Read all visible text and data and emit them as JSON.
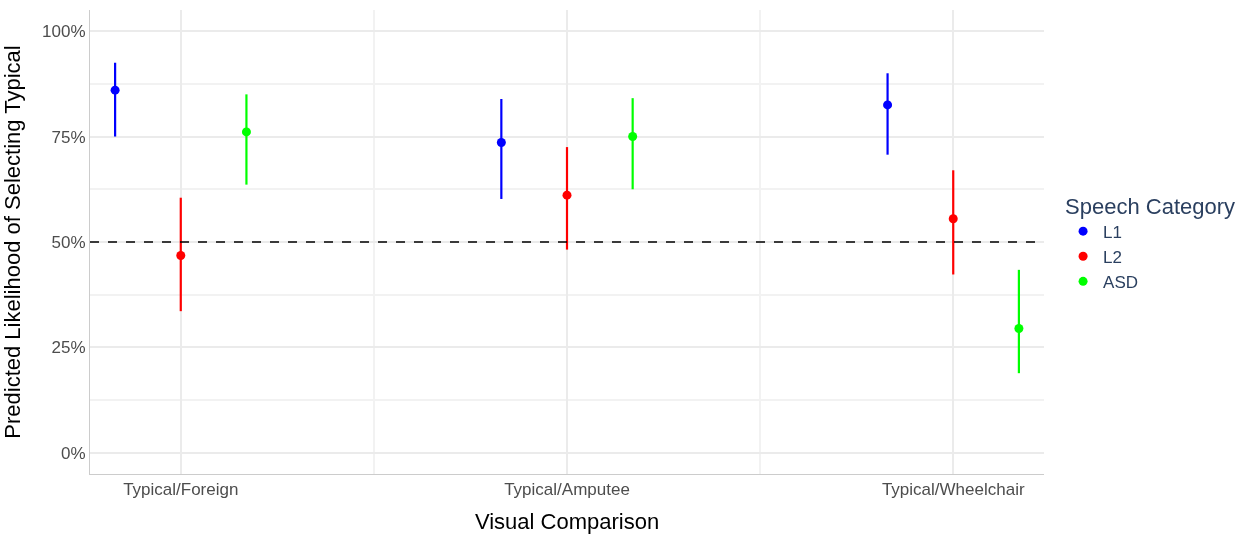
{
  "chart_data": {
    "type": "scatter",
    "xlabel": "Visual Comparison",
    "ylabel": "Predicted Likelihood of Selecting Typical",
    "legend_title": "Speech Category",
    "categories": [
      "Typical/Foreign",
      "Typical/Amputee",
      "Typical/Wheelchair"
    ],
    "series": [
      {
        "name": "L1",
        "color": "#0000ff",
        "values": [
          86,
          73.6,
          82.5
        ],
        "errors": [
          [
            75,
            92.5
          ],
          [
            60.2,
            83.9
          ],
          [
            70.7,
            90
          ]
        ]
      },
      {
        "name": "L2",
        "color": "#ff0000",
        "values": [
          46.8,
          61.1,
          55.5
        ],
        "errors": [
          [
            33.6,
            60.5
          ],
          [
            48.2,
            72.5
          ],
          [
            42.3,
            67
          ]
        ]
      },
      {
        "name": "ASD",
        "color": "#00ff00",
        "values": [
          76.1,
          75,
          29.5
        ],
        "errors": [
          [
            63.6,
            85
          ],
          [
            62.5,
            84.1
          ],
          [
            18.9,
            43.4
          ]
        ]
      }
    ],
    "ylim": [
      -5,
      105
    ],
    "yticks": [
      {
        "value": 0,
        "label": "0%"
      },
      {
        "value": 25,
        "label": "25%"
      },
      {
        "value": 50,
        "label": "50%"
      },
      {
        "value": 75,
        "label": "75%"
      },
      {
        "value": 100,
        "label": "100%"
      }
    ],
    "ref_lines": [
      {
        "axis": "y",
        "value": 50,
        "color": "#000000",
        "line_style": "dashed"
      }
    ],
    "grid": true,
    "legend": "right",
    "marker": "circle"
  }
}
